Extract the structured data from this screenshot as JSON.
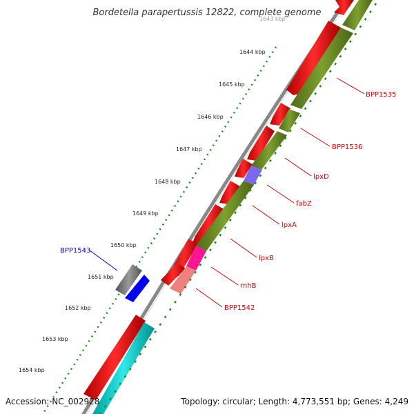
{
  "title": "Bordetella parapertussis 12822, complete genome",
  "footer": {
    "accession": "Accession: NC_002928",
    "topology": "Topology: circular; Length: 4,773,551 bp; Genes: 4,249"
  },
  "ticks": [
    "1643 kbp",
    "1644 kbp",
    "1645 kbp",
    "1646 kbp",
    "1647 kbp",
    "1648 kbp",
    "1649 kbp",
    "1650 kbp",
    "1651 kbp",
    "1652 kbp",
    "1653 kbp",
    "1654 kbp"
  ],
  "genes": [
    {
      "name": "BPP1535",
      "color": "#cc0000"
    },
    {
      "name": "BPP1536",
      "color": "#cc0000"
    },
    {
      "name": "lpxD",
      "color": "#cc0000"
    },
    {
      "name": "fabZ",
      "color": "#cc0000"
    },
    {
      "name": "lpxA",
      "color": "#cc0000"
    },
    {
      "name": "lpxB",
      "color": "#cc0000"
    },
    {
      "name": "rnhB",
      "color": "#cc0000"
    },
    {
      "name": "BPP1542",
      "color": "#cc0000"
    },
    {
      "name": "BPP1543",
      "color": "#0000cc"
    }
  ],
  "colors": {
    "forward_cds": "#ff0000",
    "reverse_cds": "#0000ff",
    "cog_olive": "#6b8e23",
    "cog_purple": "#7b68ee",
    "cog_magenta": "#ff1493",
    "cog_pink": "#f08080",
    "cog_cyan": "#00cccc",
    "cog_gray": "#707070",
    "backbone": "#888888",
    "tick_dots": "#1a8a1a"
  }
}
